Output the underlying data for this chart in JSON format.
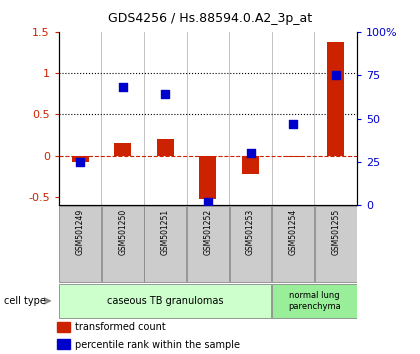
{
  "title": "GDS4256 / Hs.88594.0.A2_3p_at",
  "samples": [
    "GSM501249",
    "GSM501250",
    "GSM501251",
    "GSM501252",
    "GSM501253",
    "GSM501254",
    "GSM501255"
  ],
  "transformed_count": [
    -0.08,
    0.15,
    0.2,
    -0.52,
    -0.22,
    -0.02,
    1.38
  ],
  "percentile_rank_pct": [
    25,
    68,
    64,
    2,
    30,
    47,
    75
  ],
  "ylim_left": [
    -0.6,
    1.5
  ],
  "ylim_right": [
    0,
    100
  ],
  "yticks_left": [
    -0.5,
    0.0,
    0.5,
    1.0,
    1.5
  ],
  "ytick_labels_left": [
    "-0.5",
    "0",
    "0.5",
    "1",
    "1.5"
  ],
  "yticks_right": [
    0,
    25,
    50,
    75,
    100
  ],
  "ytick_labels_right": [
    "0",
    "25",
    "50",
    "75",
    "100%"
  ],
  "hlines": [
    0.5,
    1.0
  ],
  "bar_color": "#cc2200",
  "dot_color": "#0000cc",
  "zero_line_color": "#cc2200",
  "cell_types": [
    {
      "label": "caseous TB granulomas",
      "n": 5,
      "color": "#ccffcc"
    },
    {
      "label": "normal lung\nparenchyma",
      "n": 2,
      "color": "#99ee99"
    }
  ],
  "legend_items": [
    {
      "color": "#cc2200",
      "label": "transformed count"
    },
    {
      "color": "#0000cc",
      "label": "percentile rank within the sample"
    }
  ],
  "background_color": "#ffffff",
  "tick_box_color": "#cccccc",
  "bar_width": 0.4
}
